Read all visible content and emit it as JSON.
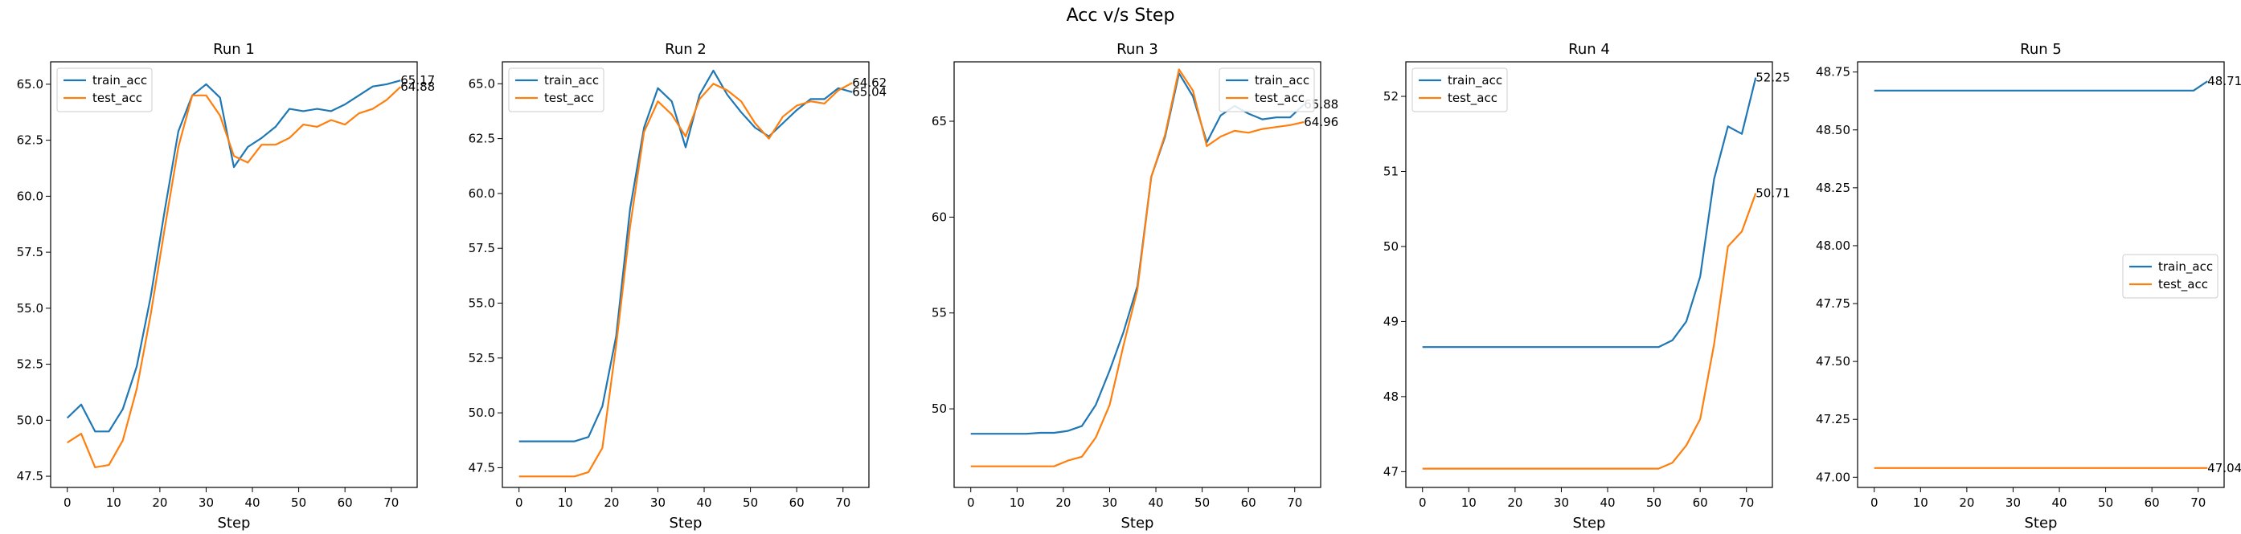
{
  "figure_title": "Acc v/s Step",
  "colors": {
    "train_acc": "#1f77b4",
    "test_acc": "#ff7f0e"
  },
  "chart_data": [
    {
      "type": "line",
      "title": "Run 1",
      "xlabel": "Step",
      "ylabel": "",
      "xlim": [
        -3.6,
        75.6
      ],
      "ylim": [
        47.0,
        66.0
      ],
      "xticks": [
        0,
        10,
        20,
        30,
        40,
        50,
        60,
        70
      ],
      "yticks": [
        47.5,
        50.0,
        52.5,
        55.0,
        57.5,
        60.0,
        62.5,
        65.0
      ],
      "yticklabels": [
        "47.5",
        "50.0",
        "52.5",
        "55.0",
        "57.5",
        "60.0",
        "62.5",
        "65.0"
      ],
      "legend_position": "upper-left",
      "x": [
        0,
        3,
        6,
        9,
        12,
        15,
        18,
        21,
        24,
        27,
        30,
        33,
        36,
        39,
        42,
        45,
        48,
        51,
        54,
        57,
        60,
        63,
        66,
        69,
        72
      ],
      "series": [
        {
          "name": "train_acc",
          "values": [
            50.1,
            50.7,
            49.5,
            49.5,
            50.5,
            52.4,
            55.5,
            59.3,
            62.9,
            64.5,
            65.0,
            64.4,
            61.3,
            62.2,
            62.6,
            63.1,
            63.9,
            63.8,
            63.9,
            63.8,
            64.1,
            64.5,
            64.9,
            65.0,
            65.17
          ]
        },
        {
          "name": "test_acc",
          "values": [
            49.0,
            49.4,
            47.9,
            48.0,
            49.1,
            51.4,
            54.7,
            58.5,
            62.2,
            64.5,
            64.5,
            63.6,
            61.8,
            61.5,
            62.3,
            62.3,
            62.6,
            63.2,
            63.1,
            63.4,
            63.2,
            63.7,
            63.9,
            64.3,
            64.88
          ]
        }
      ],
      "end_labels": [
        "65.17",
        "64.88"
      ]
    },
    {
      "type": "line",
      "title": "Run 2",
      "xlabel": "Step",
      "ylabel": "",
      "xlim": [
        -3.6,
        75.6
      ],
      "ylim": [
        46.6,
        66.0
      ],
      "xticks": [
        0,
        10,
        20,
        30,
        40,
        50,
        60,
        70
      ],
      "yticks": [
        47.5,
        50.0,
        52.5,
        55.0,
        57.5,
        60.0,
        62.5,
        65.0
      ],
      "yticklabels": [
        "47.5",
        "50.0",
        "52.5",
        "55.0",
        "57.5",
        "60.0",
        "62.5",
        "65.0"
      ],
      "legend_position": "upper-left",
      "x": [
        0,
        3,
        6,
        9,
        12,
        15,
        18,
        21,
        24,
        27,
        30,
        33,
        36,
        39,
        42,
        45,
        48,
        51,
        54,
        57,
        60,
        63,
        66,
        69,
        72
      ],
      "series": [
        {
          "name": "train_acc",
          "values": [
            48.7,
            48.7,
            48.7,
            48.7,
            48.7,
            48.9,
            50.3,
            53.5,
            59.3,
            63.0,
            64.8,
            64.2,
            62.1,
            64.5,
            65.6,
            64.5,
            63.7,
            63.0,
            62.6,
            63.2,
            63.8,
            64.3,
            64.3,
            64.8,
            64.62
          ]
        },
        {
          "name": "test_acc",
          "values": [
            47.1,
            47.1,
            47.1,
            47.1,
            47.1,
            47.3,
            48.4,
            53.1,
            58.5,
            62.8,
            64.2,
            63.6,
            62.6,
            64.3,
            65.0,
            64.7,
            64.2,
            63.2,
            62.5,
            63.5,
            64.0,
            64.2,
            64.1,
            64.7,
            65.04
          ]
        }
      ],
      "end_labels": [
        "65.04",
        "64.62"
      ]
    },
    {
      "type": "line",
      "title": "Run 3",
      "xlabel": "Step",
      "ylabel": "",
      "xlim": [
        -3.6,
        75.6
      ],
      "ylim": [
        45.9,
        68.1
      ],
      "xticks": [
        0,
        10,
        20,
        30,
        40,
        50,
        60,
        70
      ],
      "yticks": [
        50,
        55,
        60,
        65
      ],
      "yticklabels": [
        "50",
        "55",
        "60",
        "65"
      ],
      "legend_position": "upper-right",
      "x": [
        0,
        3,
        6,
        9,
        12,
        15,
        18,
        21,
        24,
        27,
        30,
        33,
        36,
        39,
        42,
        45,
        48,
        51,
        54,
        57,
        60,
        63,
        66,
        69,
        72
      ],
      "series": [
        {
          "name": "train_acc",
          "values": [
            48.7,
            48.7,
            48.7,
            48.7,
            48.7,
            48.75,
            48.75,
            48.85,
            49.1,
            50.2,
            52.0,
            54.0,
            56.4,
            62.1,
            64.2,
            67.5,
            66.3,
            63.9,
            65.3,
            65.8,
            65.4,
            65.1,
            65.2,
            65.2,
            65.88
          ]
        },
        {
          "name": "test_acc",
          "values": [
            47.0,
            47.0,
            47.0,
            47.0,
            47.0,
            47.0,
            47.0,
            47.3,
            47.5,
            48.5,
            50.2,
            53.3,
            56.2,
            62.1,
            64.3,
            67.7,
            66.6,
            63.7,
            64.2,
            64.5,
            64.4,
            64.6,
            64.7,
            64.8,
            64.96
          ]
        }
      ],
      "end_labels": [
        "65.88",
        "64.96"
      ]
    },
    {
      "type": "line",
      "title": "Run 4",
      "xlabel": "Step",
      "ylabel": "",
      "xlim": [
        -3.6,
        75.6
      ],
      "ylim": [
        46.79,
        52.46
      ],
      "xticks": [
        0,
        10,
        20,
        30,
        40,
        50,
        60,
        70
      ],
      "yticks": [
        47,
        48,
        49,
        50,
        51,
        52
      ],
      "yticklabels": [
        "47",
        "48",
        "49",
        "50",
        "51",
        "52"
      ],
      "legend_position": "upper-left",
      "x": [
        0,
        3,
        6,
        9,
        12,
        15,
        18,
        21,
        24,
        27,
        30,
        33,
        36,
        39,
        42,
        45,
        48,
        51,
        54,
        57,
        60,
        63,
        66,
        69,
        72
      ],
      "series": [
        {
          "name": "train_acc",
          "values": [
            48.66,
            48.66,
            48.66,
            48.66,
            48.66,
            48.66,
            48.66,
            48.66,
            48.66,
            48.66,
            48.66,
            48.66,
            48.66,
            48.66,
            48.66,
            48.66,
            48.66,
            48.66,
            48.75,
            49.0,
            49.6,
            50.9,
            51.6,
            51.5,
            52.25
          ]
        },
        {
          "name": "test_acc",
          "values": [
            47.04,
            47.04,
            47.04,
            47.04,
            47.04,
            47.04,
            47.04,
            47.04,
            47.04,
            47.04,
            47.04,
            47.04,
            47.04,
            47.04,
            47.04,
            47.04,
            47.04,
            47.04,
            47.12,
            47.35,
            47.7,
            48.7,
            50.0,
            50.2,
            50.71
          ]
        }
      ],
      "end_labels": [
        "52.25",
        "50.71"
      ]
    },
    {
      "type": "line",
      "title": "Run 5",
      "xlabel": "Step",
      "ylabel": "",
      "xlim": [
        -3.6,
        75.6
      ],
      "ylim": [
        46.956,
        48.794
      ],
      "xticks": [
        0,
        10,
        20,
        30,
        40,
        50,
        60,
        70
      ],
      "yticks": [
        47.0,
        47.25,
        47.5,
        47.75,
        48.0,
        48.25,
        48.5,
        48.75
      ],
      "yticklabels": [
        "47.00",
        "47.25",
        "47.50",
        "47.75",
        "48.00",
        "48.25",
        "48.50",
        "48.75"
      ],
      "legend_position": "center-right",
      "x": [
        0,
        3,
        6,
        9,
        12,
        15,
        18,
        21,
        24,
        27,
        30,
        33,
        36,
        39,
        42,
        45,
        48,
        51,
        54,
        57,
        60,
        63,
        66,
        69,
        72
      ],
      "series": [
        {
          "name": "train_acc",
          "values": [
            48.67,
            48.67,
            48.67,
            48.67,
            48.67,
            48.67,
            48.67,
            48.67,
            48.67,
            48.67,
            48.67,
            48.67,
            48.67,
            48.67,
            48.67,
            48.67,
            48.67,
            48.67,
            48.67,
            48.67,
            48.67,
            48.67,
            48.67,
            48.67,
            48.71
          ]
        },
        {
          "name": "test_acc",
          "values": [
            47.04,
            47.04,
            47.04,
            47.04,
            47.04,
            47.04,
            47.04,
            47.04,
            47.04,
            47.04,
            47.04,
            47.04,
            47.04,
            47.04,
            47.04,
            47.04,
            47.04,
            47.04,
            47.04,
            47.04,
            47.04,
            47.04,
            47.04,
            47.04,
            47.04
          ]
        }
      ],
      "end_labels": [
        "48.71",
        "47.04"
      ]
    }
  ]
}
